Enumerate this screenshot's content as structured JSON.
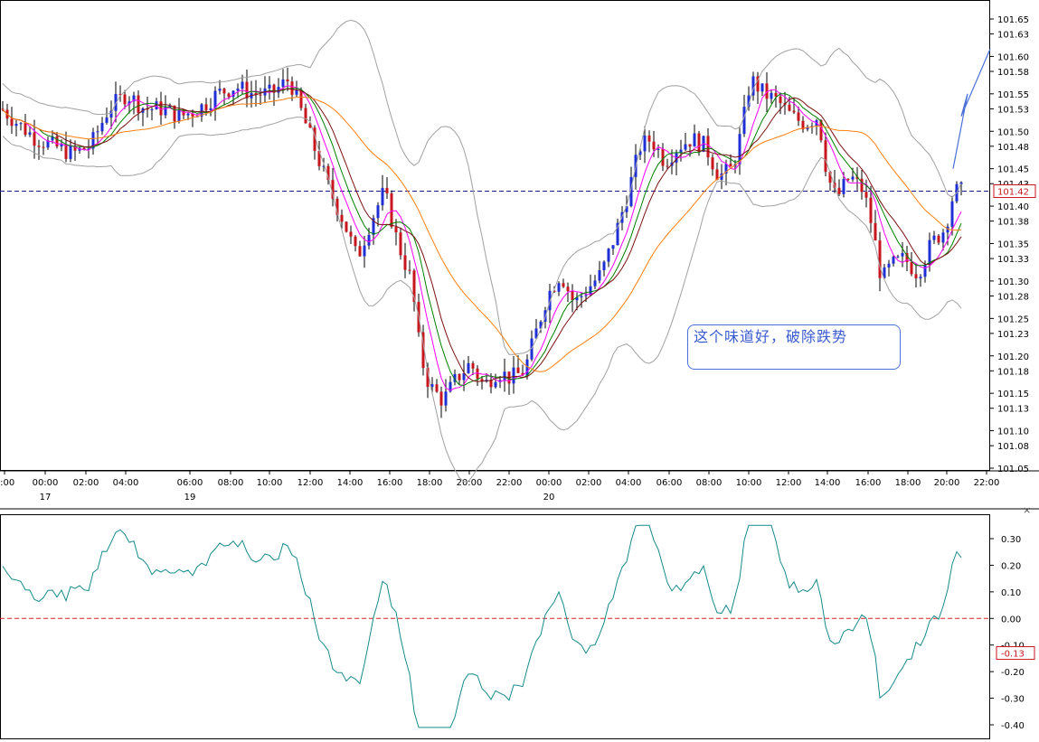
{
  "annotation": "这个味道好，破除跌势",
  "close_icon": "×",
  "colors": {
    "bull": "#1f2fd6",
    "bear": "#c8161d",
    "ma_fast": "#ff00ff",
    "ma_mid": "#008000",
    "ma_slow": "#7a1010",
    "ma_long": "#ff7f0e",
    "bollinger": "#a0a0a0",
    "oscillator": "#168a8a",
    "ref_line": "#1a1a8c",
    "zero_line": "#e02020"
  },
  "chart_data": [
    {
      "type": "candlestick",
      "name": "price",
      "yticks": [
        "101.65",
        "101.63",
        "101.60",
        "101.58",
        "101.55",
        "101.53",
        "101.50",
        "101.48",
        "101.45",
        "101.43",
        "101.40",
        "101.38",
        "101.35",
        "101.33",
        "101.30",
        "101.28",
        "101.25",
        "101.23",
        "101.20",
        "101.18",
        "101.15",
        "101.13",
        "101.10",
        "101.08",
        "101.05"
      ],
      "ylim": [
        101.05,
        101.65
      ],
      "xticks": [
        "2:00",
        "00:00",
        "02:00",
        "04:00",
        "06:00",
        "08:00",
        "10:00",
        "12:00",
        "14:00",
        "16:00",
        "18:00",
        "20:00",
        "22:00",
        "00:00",
        "02:00",
        "04:00",
        "06:00",
        "08:00",
        "10:00",
        "12:00",
        "14:00",
        "16:00",
        "18:00",
        "20:00",
        "22:00"
      ],
      "date_labels": [
        {
          "label": "17",
          "at_tick": 1
        },
        {
          "label": "19",
          "at_tick": 4
        },
        {
          "label": "20",
          "at_tick": 13
        }
      ],
      "current_price": "101.42",
      "reference_level": 101.42,
      "overlays": [
        "ma_fast",
        "ma_mid",
        "ma_slow",
        "ma_long",
        "bollinger_upper",
        "bollinger_lower"
      ],
      "projection_arrow": [
        [
          101.45,
          101.62
        ],
        [
          101.52,
          101.55
        ],
        [
          101.61,
          101.6
        ]
      ]
    },
    {
      "type": "line",
      "name": "oscillator",
      "yticks": [
        "0.30",
        "0.20",
        "0.10",
        "0.00",
        "-0.10",
        "-0.20",
        "-0.30",
        "-0.40"
      ],
      "ylim": [
        -0.42,
        0.32
      ],
      "current_value": "-0.13",
      "zero_line": 0
    }
  ]
}
